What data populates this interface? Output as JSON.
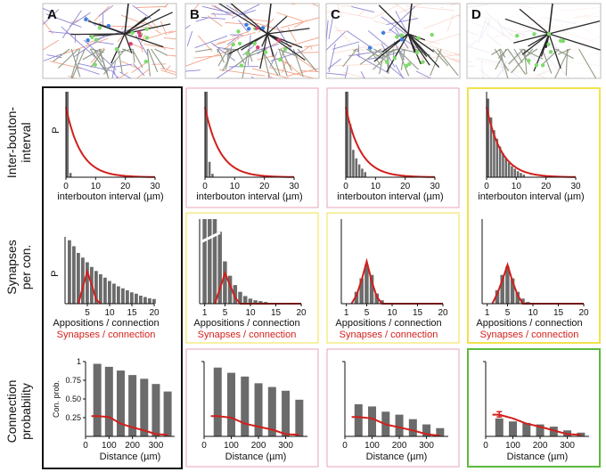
{
  "figure": {
    "panel_letters": [
      "A",
      "B",
      "C",
      "D"
    ],
    "row_labels": {
      "interbouton": [
        "Inter-bouton-",
        "interval"
      ],
      "synapses": [
        "Synapses",
        "per con."
      ],
      "connection": [
        "Connection",
        "probability"
      ]
    },
    "axis_text": {
      "p": "P",
      "interbouton_xlabel": "interbouton interval (µm)",
      "appositions_xlabel": "Appositions / connection",
      "synapses_xlabel": "Synapses / connection",
      "distance_xlabel": "Distance (µm)",
      "conprob_ylabel": "Con. prob."
    },
    "colors": {
      "bar": "#6b6b6b",
      "fit": "#d21f1b",
      "frame_black": "#111111",
      "frame_pink": "#e8a6b6",
      "frame_yellow": "#f2e24a",
      "frame_green": "#5cba3c",
      "axon_red": "#f2a38a",
      "axon_blue": "#8d86d3",
      "dendrite_dark": "#2a2a2a",
      "dendrite_gray": "#8f9a85"
    }
  },
  "chart_data": [
    {
      "id": "A-interbouton",
      "type": "bar",
      "panel": "A",
      "x": [
        0.5,
        1.5
      ],
      "values": [
        1.0,
        0.05
      ],
      "xlim": [
        0,
        30
      ],
      "xticks": [
        0,
        10,
        20,
        30
      ],
      "fit_curve": "exponential",
      "fit_decay_um": 5.0,
      "xlabel": "interbouton interval (µm)",
      "ylabel": "P"
    },
    {
      "id": "B-interbouton",
      "type": "bar",
      "panel": "B",
      "x": [
        0.5,
        1.5,
        2.5
      ],
      "values": [
        1.0,
        0.18,
        0.04
      ],
      "xlim": [
        0,
        30
      ],
      "xticks": [
        0,
        10,
        20,
        30
      ],
      "fit_curve": "exponential",
      "fit_decay_um": 5.0,
      "xlabel": "interbouton interval (µm)"
    },
    {
      "id": "C-interbouton",
      "type": "bar",
      "panel": "C",
      "x": [
        0.5,
        1.5,
        2.5,
        3.5,
        4.5,
        5.5,
        6.5
      ],
      "values": [
        1.0,
        0.62,
        0.32,
        0.22,
        0.15,
        0.1,
        0.06
      ],
      "xlim": [
        0,
        30
      ],
      "xticks": [
        0,
        10,
        20,
        30
      ],
      "fit_curve": "exponential",
      "fit_decay_um": 5.0,
      "xlabel": "interbouton interval (µm)"
    },
    {
      "id": "D-interbouton",
      "type": "bar",
      "panel": "D",
      "x": [
        0.5,
        1.5,
        2.5,
        3.5,
        4.5,
        5.5,
        6.5,
        7.5,
        8.5,
        9.5,
        10.5,
        11.5,
        12.5
      ],
      "values": [
        0.92,
        0.7,
        0.55,
        0.45,
        0.36,
        0.28,
        0.22,
        0.17,
        0.13,
        0.1,
        0.07,
        0.05,
        0.03
      ],
      "xlim": [
        0,
        30
      ],
      "xticks": [
        0,
        10,
        20,
        30
      ],
      "fit_curve": "exponential",
      "fit_decay_um": 5.0,
      "xlabel": "interbouton interval (µm)"
    },
    {
      "id": "A-synapses",
      "type": "bar",
      "panel": "A",
      "categories": [
        1,
        2,
        3,
        4,
        5,
        6,
        7,
        8,
        9,
        10,
        11,
        12,
        13,
        14,
        15,
        16,
        17,
        18,
        19,
        20
      ],
      "values": [
        0.95,
        0.86,
        0.76,
        0.69,
        0.62,
        0.55,
        0.49,
        0.44,
        0.39,
        0.34,
        0.3,
        0.26,
        0.23,
        0.2,
        0.17,
        0.15,
        0.12,
        0.1,
        0.08,
        0.07
      ],
      "xlim": [
        0,
        20
      ],
      "xticks": [
        5,
        10,
        15,
        20
      ],
      "synapse_curve": [
        [
          3,
          0
        ],
        [
          4,
          0.25
        ],
        [
          5,
          0.48
        ],
        [
          6,
          0.28
        ],
        [
          7,
          0.06
        ],
        [
          8,
          0
        ]
      ],
      "xlabel": "Appositions / connection",
      "xlabel2": "Synapses / connection",
      "ylabel": "P"
    },
    {
      "id": "B-synapses",
      "type": "bar",
      "panel": "B",
      "categories": [
        1,
        2,
        3,
        4,
        5,
        6,
        7,
        8,
        9,
        10,
        11,
        12,
        13,
        14
      ],
      "values": [
        1.0,
        1.0,
        1.0,
        0.85,
        0.5,
        0.33,
        0.22,
        0.14,
        0.09,
        0.06,
        0.04,
        0.03,
        0.02,
        0.01
      ],
      "broken_axis": true,
      "xlim": [
        0,
        20
      ],
      "xticks": [
        1,
        5,
        10,
        15,
        20
      ],
      "synapse_curve": [
        [
          3,
          0
        ],
        [
          4,
          0.18
        ],
        [
          5,
          0.36
        ],
        [
          6,
          0.22
        ],
        [
          7,
          0.07
        ],
        [
          8,
          0
        ],
        [
          20,
          0
        ]
      ],
      "xlabel": "Appositions / connection",
      "xlabel2": "Synapses / connection"
    },
    {
      "id": "C-synapses",
      "type": "bar",
      "panel": "C",
      "categories": [
        3,
        4,
        5,
        6,
        7,
        8
      ],
      "values": [
        0.14,
        0.3,
        0.46,
        0.34,
        0.12,
        0.04
      ],
      "xlim": [
        0,
        20
      ],
      "xticks": [
        1,
        5,
        10,
        15,
        20
      ],
      "synapse_curve": [
        [
          2,
          0
        ],
        [
          3,
          0.1
        ],
        [
          4,
          0.28
        ],
        [
          5,
          0.5
        ],
        [
          6,
          0.26
        ],
        [
          7,
          0.08
        ],
        [
          8,
          0
        ],
        [
          20,
          0
        ]
      ],
      "xlabel": "Appositions / connection",
      "xlabel2": "Synapses / connection"
    },
    {
      "id": "D-synapses",
      "type": "bar",
      "panel": "D",
      "categories": [
        3,
        4,
        5,
        6,
        7,
        8,
        9
      ],
      "values": [
        0.16,
        0.34,
        0.44,
        0.3,
        0.14,
        0.06,
        0.02
      ],
      "xlim": [
        0,
        20
      ],
      "xticks": [
        1,
        5,
        10,
        15,
        20
      ],
      "synapse_curve": [
        [
          2,
          0
        ],
        [
          3,
          0.12
        ],
        [
          4,
          0.28
        ],
        [
          5,
          0.46
        ],
        [
          6,
          0.26
        ],
        [
          7,
          0.1
        ],
        [
          8,
          0
        ],
        [
          20,
          0
        ]
      ],
      "xlabel": "Appositions / connection",
      "xlabel2": "Synapses / connection"
    },
    {
      "id": "A-connection",
      "type": "bar",
      "panel": "A",
      "categories": [
        50,
        100,
        150,
        200,
        250,
        300,
        350
      ],
      "values": [
        0.97,
        0.93,
        0.88,
        0.82,
        0.77,
        0.7,
        0.6
      ],
      "line_x": [
        25,
        50,
        100,
        150,
        200,
        250,
        300,
        350
      ],
      "line_y": [
        0.27,
        0.27,
        0.26,
        0.17,
        0.12,
        0.08,
        0.03,
        0.02
      ],
      "ylim": [
        0,
        1
      ],
      "yticks": [
        0.25,
        0.5,
        0.75,
        1
      ],
      "ytick_labels": [
        "0.25",
        "0.50",
        "0.75",
        "1"
      ],
      "xticks": [
        0,
        100,
        200,
        300
      ],
      "xlabel": "Distance (µm)",
      "ylabel": "Con. prob."
    },
    {
      "id": "B-connection",
      "type": "bar",
      "panel": "B",
      "categories": [
        50,
        100,
        150,
        200,
        250,
        300,
        350
      ],
      "values": [
        0.92,
        0.85,
        0.8,
        0.71,
        0.66,
        0.61,
        0.49
      ],
      "line_x": [
        25,
        50,
        100,
        150,
        200,
        250,
        300,
        350
      ],
      "line_y": [
        0.27,
        0.27,
        0.25,
        0.17,
        0.13,
        0.09,
        0.03,
        0.02
      ],
      "ylim": [
        0,
        1
      ],
      "xticks": [
        0,
        100,
        200,
        300
      ],
      "xlabel": "Distance (µm)"
    },
    {
      "id": "C-connection",
      "type": "bar",
      "panel": "C",
      "categories": [
        50,
        100,
        150,
        200,
        250,
        300,
        350
      ],
      "values": [
        0.43,
        0.4,
        0.33,
        0.29,
        0.23,
        0.16,
        0.11
      ],
      "line_x": [
        25,
        50,
        100,
        150,
        200,
        250,
        300,
        350
      ],
      "line_y": [
        0.26,
        0.26,
        0.24,
        0.16,
        0.12,
        0.08,
        0.03,
        0.01
      ],
      "ylim": [
        0,
        1
      ],
      "xticks": [
        0,
        100,
        200,
        300
      ],
      "xlabel": "Distance (µm)"
    },
    {
      "id": "D-connection",
      "type": "bar",
      "panel": "D",
      "categories": [
        50,
        100,
        150,
        200,
        250,
        300,
        350
      ],
      "values": [
        0.24,
        0.2,
        0.18,
        0.16,
        0.13,
        0.08,
        0.05
      ],
      "line_x": [
        25,
        50,
        100,
        150,
        200,
        250,
        300,
        350
      ],
      "line_y": [
        0.29,
        0.29,
        0.24,
        0.17,
        0.13,
        0.08,
        0.03,
        0.02
      ],
      "error_at": 50,
      "error_range": [
        0.26,
        0.33
      ],
      "ylim": [
        0,
        1
      ],
      "xticks": [
        0,
        100,
        200,
        300
      ],
      "xlabel": "Distance (µm)"
    }
  ]
}
